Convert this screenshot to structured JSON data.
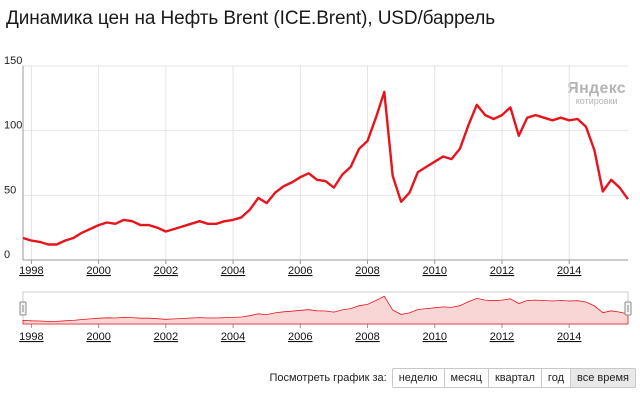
{
  "page": {
    "title": "Динамика цен на Нефть Brent (ICE.Brent), USD/баррель",
    "watermark_main": "Яндекс",
    "watermark_sub": "котировки"
  },
  "period_selector": {
    "prompt": "Посмотреть график за:",
    "options": [
      "неделю",
      "месяц",
      "квартал",
      "год",
      "все время"
    ],
    "selected": "все время"
  },
  "colors": {
    "line": "#e8141b",
    "navigator_fill": "#f9d6d6",
    "navigator_line": "#e8141b",
    "grid": "#e4e4e4",
    "axis": "#999999"
  },
  "chart_data": {
    "type": "line",
    "title": "Динамика цен на Нефть Brent (ICE.Brent), USD/баррель",
    "ylim": [
      0,
      150
    ],
    "xlim": [
      1997.75,
      2015.75
    ],
    "y_ticks": [
      "0",
      "50",
      "100",
      "150"
    ],
    "x_ticks": [
      "1998",
      "2000",
      "2002",
      "2004",
      "2006",
      "2008",
      "2010",
      "2012",
      "2014"
    ],
    "grid": true,
    "series": [
      {
        "x": [
          1997.75,
          1998.0,
          1998.25,
          1998.5,
          1998.75,
          1999.0,
          1999.25,
          1999.5,
          1999.75,
          2000.0,
          2000.25,
          2000.5,
          2000.75,
          2001.0,
          2001.25,
          2001.5,
          2001.75,
          2002.0,
          2002.25,
          2002.5,
          2002.75,
          2003.0,
          2003.25,
          2003.5,
          2003.75,
          2004.0,
          2004.25,
          2004.5,
          2004.75,
          2005.0,
          2005.25,
          2005.5,
          2005.75,
          2006.0,
          2006.25,
          2006.5,
          2006.75,
          2007.0,
          2007.25,
          2007.5,
          2007.75,
          2008.0,
          2008.25,
          2008.5,
          2008.75,
          2009.0,
          2009.25,
          2009.5,
          2009.75,
          2010.0,
          2010.25,
          2010.5,
          2010.75,
          2011.0,
          2011.25,
          2011.5,
          2011.75,
          2012.0,
          2012.25,
          2012.5,
          2012.75,
          2013.0,
          2013.25,
          2013.5,
          2013.75,
          2014.0,
          2014.25,
          2014.5,
          2014.75,
          2015.0,
          2015.25,
          2015.5,
          2015.75
        ],
        "values": [
          17,
          15,
          14,
          12,
          12,
          15,
          17,
          21,
          24,
          27,
          29,
          28,
          31,
          30,
          27,
          27,
          25,
          22,
          24,
          26,
          28,
          30,
          28,
          28,
          30,
          31,
          33,
          39,
          48,
          44,
          52,
          57,
          60,
          64,
          67,
          62,
          61,
          56,
          66,
          72,
          86,
          92,
          110,
          130,
          65,
          45,
          52,
          68,
          72,
          76,
          80,
          78,
          86,
          104,
          120,
          112,
          109,
          112,
          118,
          96,
          110,
          112,
          110,
          108,
          110,
          108,
          109,
          103,
          85,
          53,
          62,
          56,
          47
        ]
      }
    ]
  }
}
